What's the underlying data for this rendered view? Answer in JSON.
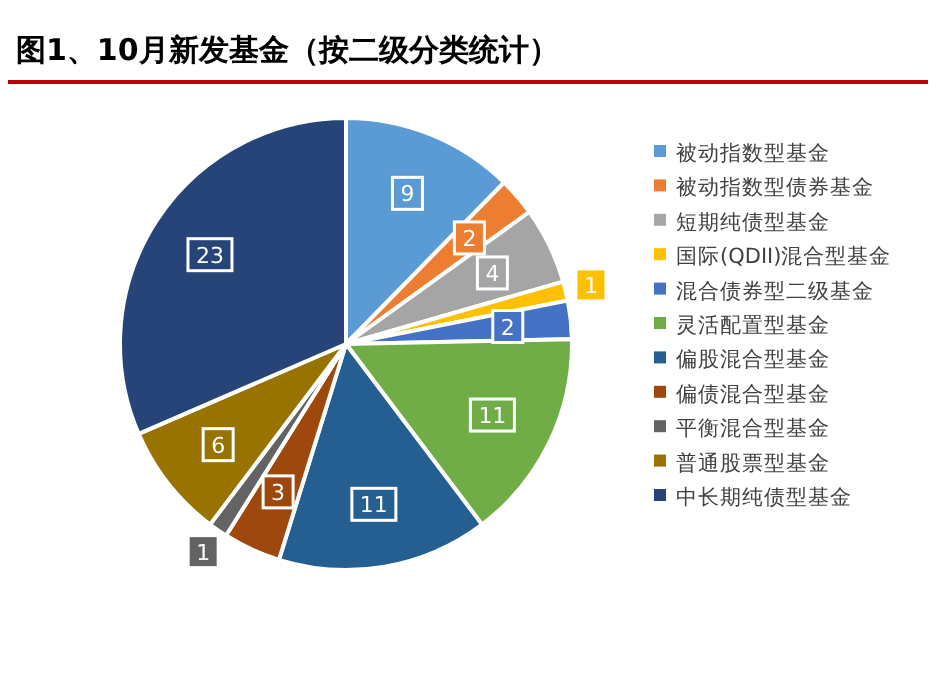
{
  "chart_data": {
    "type": "pie",
    "title": "图1、10月新发基金（按二级分类统计）",
    "categories": [
      "被动指数型基金",
      "被动指数型债券基金",
      "短期纯债型基金",
      "国际(QDII)混合型基金",
      "混合债券型二级基金",
      "灵活配置型基金",
      "偏股混合型基金",
      "偏债混合型基金",
      "平衡混合型基金",
      "普通股票型基金",
      "中长期纯债型基金"
    ],
    "values": [
      9,
      2,
      4,
      1,
      2,
      11,
      11,
      3,
      1,
      6,
      23
    ],
    "colors": [
      "#5b9bd5",
      "#ed7d31",
      "#a5a5a5",
      "#ffc000",
      "#4472c4",
      "#70ad47",
      "#255e91",
      "#9e480e",
      "#636363",
      "#997300",
      "#264478"
    ],
    "data_labels": true,
    "legend": "right"
  }
}
